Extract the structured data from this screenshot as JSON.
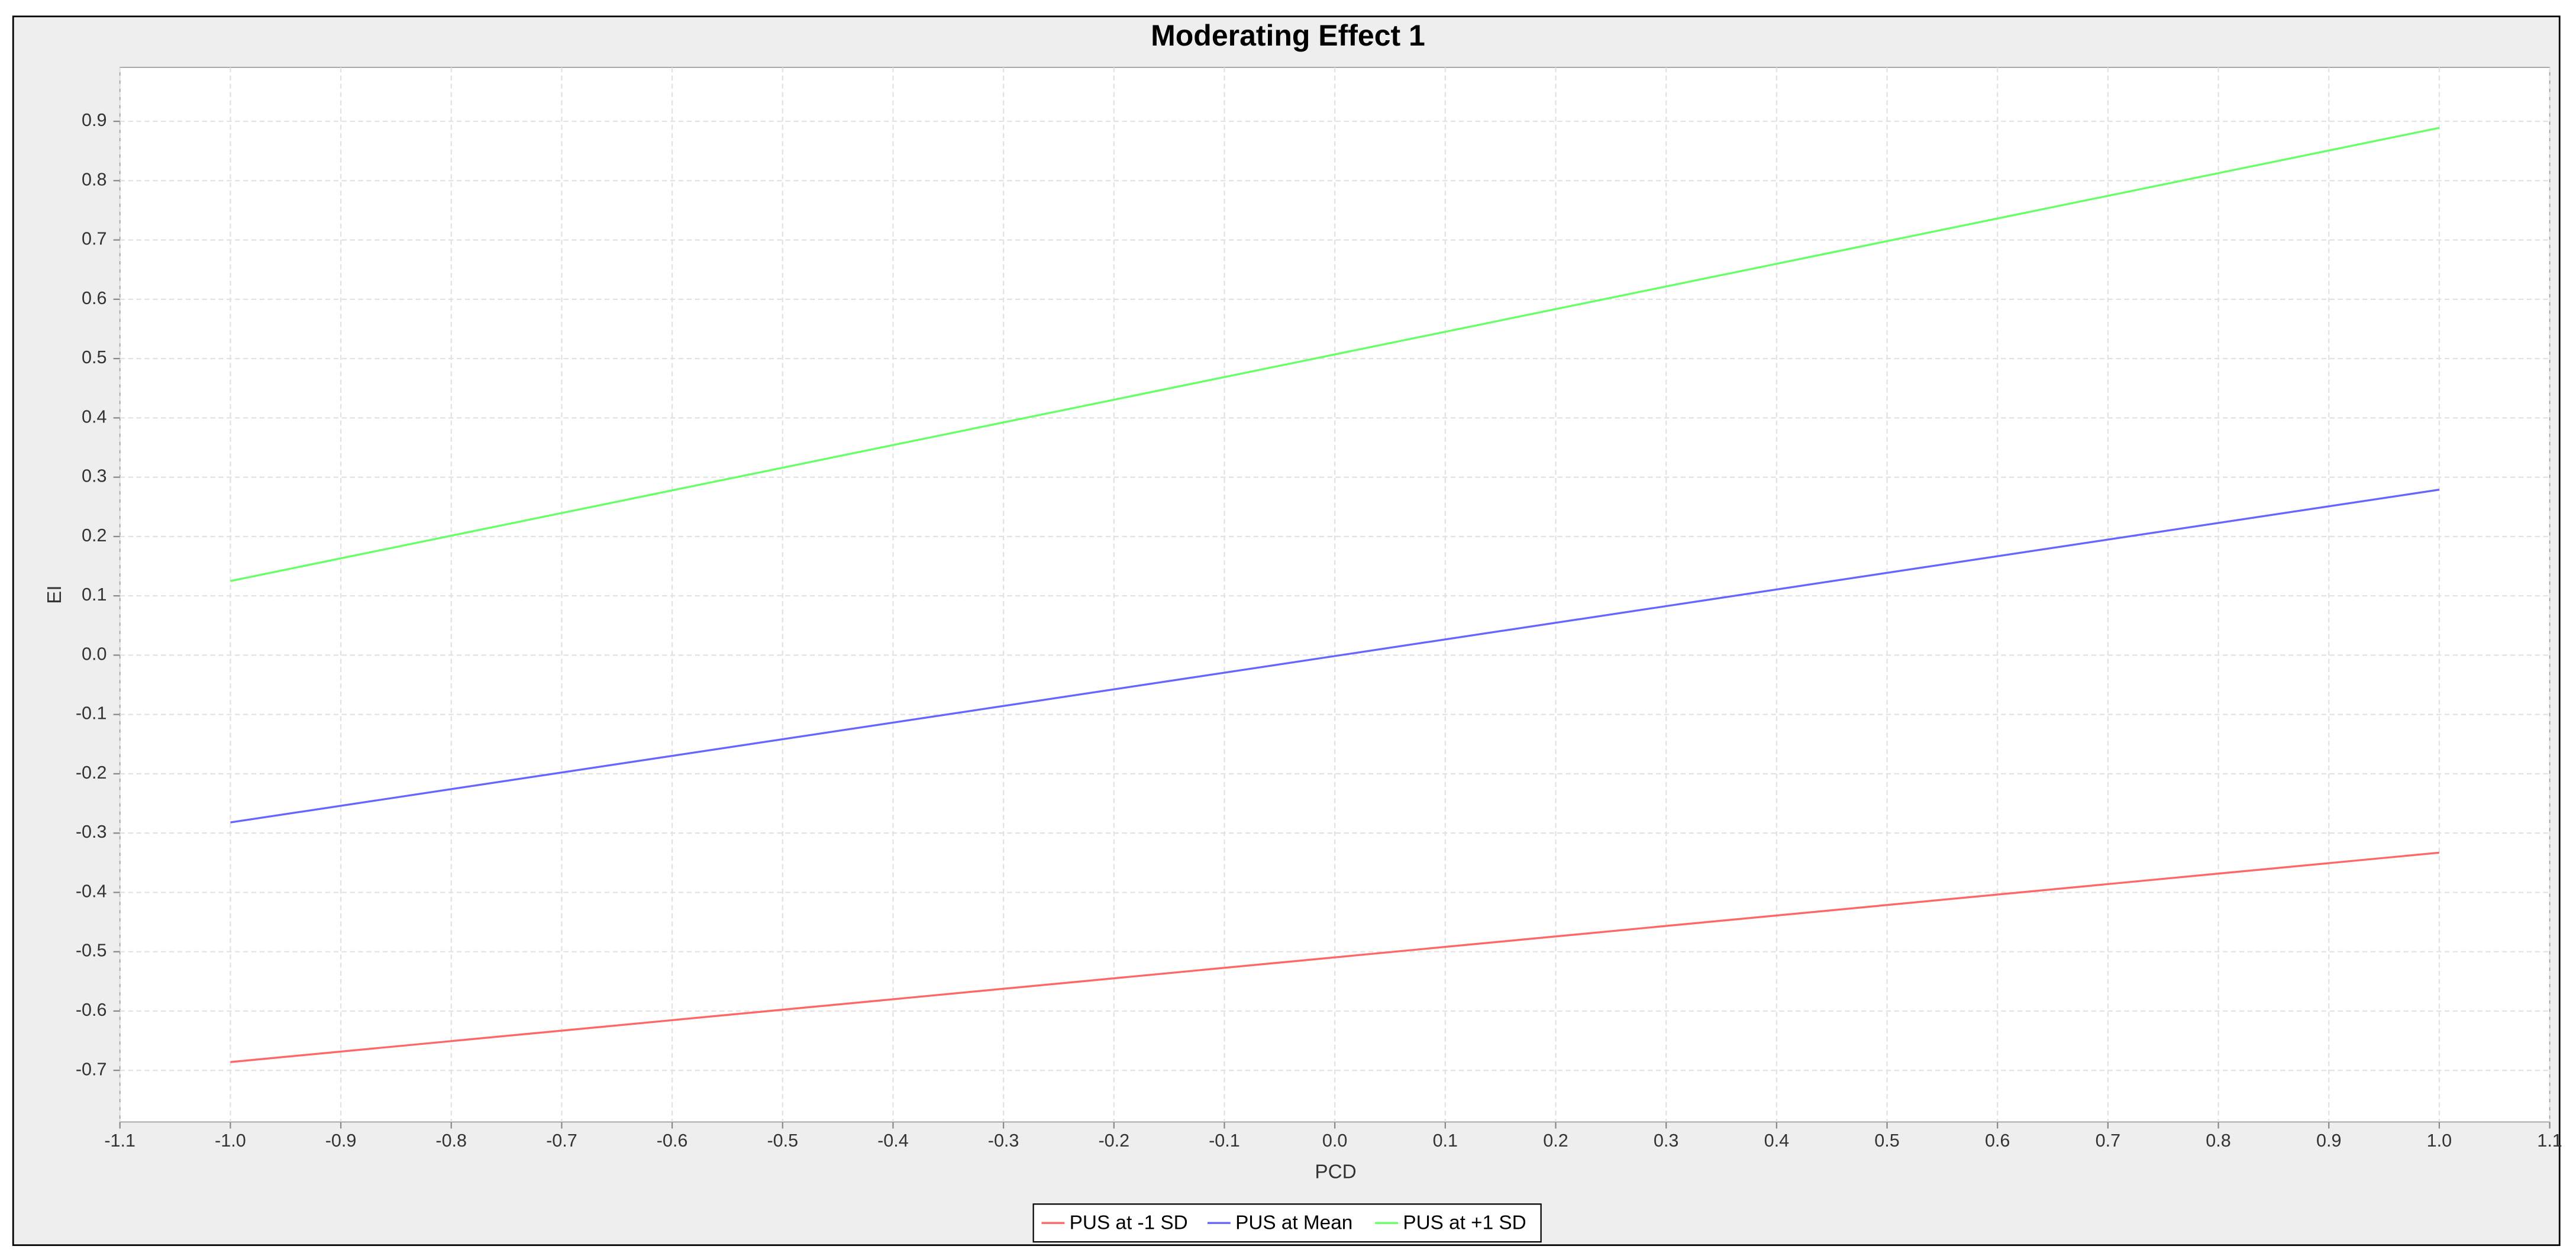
{
  "chart_data": {
    "type": "line",
    "title": "Moderating Effect 1",
    "x_label": "PCD",
    "y_label": "EI",
    "x": [
      -1,
      1
    ],
    "series": [
      {
        "name": "PUS at -1 SD",
        "color": "#ff6666",
        "values": [
          -0.686,
          -0.333
        ]
      },
      {
        "name": "PUS at Mean",
        "color": "#6666ff",
        "values": [
          -0.282,
          0.279
        ]
      },
      {
        "name": "PUS at +1 SD",
        "color": "#66ff66",
        "values": [
          0.125,
          0.889
        ]
      }
    ],
    "xlim": [
      -1.1,
      1.1
    ],
    "xticks": [
      -1.1,
      {
        "value": -1,
        "label": "-1.0"
      },
      -0.9,
      -0.8,
      -0.7,
      -0.6,
      -0.5,
      -0.4,
      -0.3,
      -0.2,
      -0.1,
      {
        "value": 0,
        "label": "0.0"
      },
      0.1,
      0.2,
      0.3,
      0.4,
      0.5,
      0.6,
      0.7,
      0.8,
      0.9,
      {
        "value": 1,
        "label": "1.0"
      },
      1.1
    ],
    "ylim": [
      -0.787,
      0.991
    ],
    "yticks": [
      -0.7,
      -0.6,
      -0.5,
      -0.4,
      -0.3,
      -0.2,
      -0.1,
      {
        "value": 0,
        "label": "0.0"
      },
      0.1,
      0.2,
      0.3,
      0.4,
      0.5,
      0.6,
      0.7,
      0.8,
      0.9
    ],
    "grid": true,
    "legend": "bottom"
  }
}
